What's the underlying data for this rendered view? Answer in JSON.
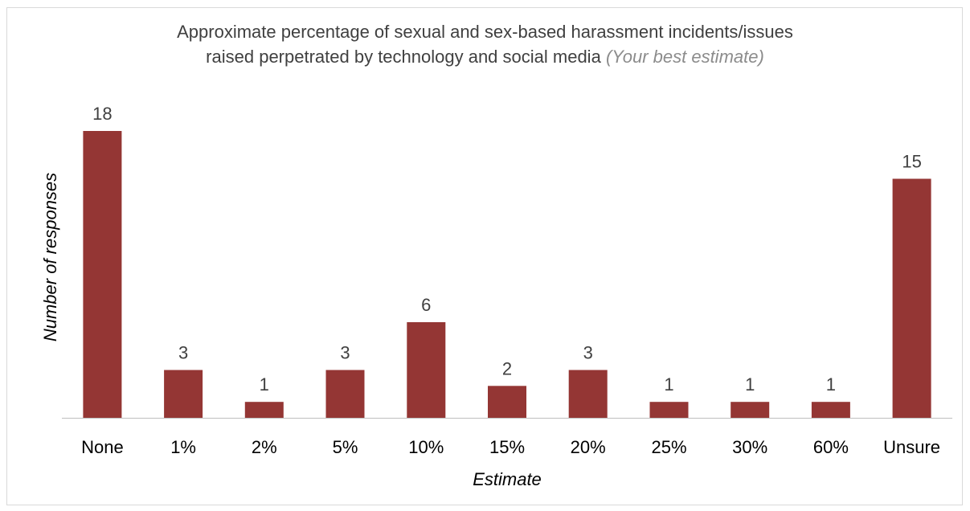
{
  "chart_data": {
    "type": "bar",
    "title_line1": "Approximate percentage of sexual and sex-based harassment incidents/issues",
    "title_line2": "raised perpetrated by technology and social media",
    "subtitle": "(Your best estimate)",
    "xlabel": "Estimate",
    "ylabel": "Number of responses",
    "categories": [
      "None",
      "1%",
      "2%",
      "5%",
      "10%",
      "15%",
      "20%",
      "25%",
      "30%",
      "60%",
      "Unsure"
    ],
    "values": [
      18,
      3,
      1,
      3,
      6,
      2,
      3,
      1,
      1,
      1,
      15
    ],
    "ylim": [
      0,
      18
    ],
    "grid": false,
    "legend": "none",
    "bar_color": "#943634",
    "axis_color": "#bfbfbf",
    "label_color": "#404040"
  }
}
